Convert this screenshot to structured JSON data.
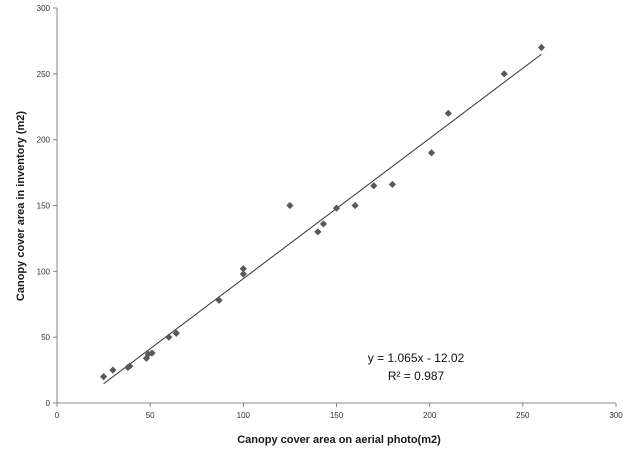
{
  "chart_data": {
    "type": "scatter",
    "title": "",
    "xlabel": "Canopy cover area on aerial photo(m2)",
    "ylabel": "Canopy cover area in inventory (m2)",
    "xlim": [
      0,
      300
    ],
    "ylim": [
      0,
      300
    ],
    "x_ticks": [
      0,
      50,
      100,
      150,
      200,
      250,
      300
    ],
    "y_ticks": [
      0,
      50,
      100,
      150,
      200,
      250,
      300
    ],
    "x_tick_labels": [
      "0",
      "50",
      "100",
      "150",
      "200",
      "250",
      "300"
    ],
    "y_tick_labels": [
      "0",
      "50",
      "100",
      "150",
      "200",
      "250",
      "300"
    ],
    "grid": false,
    "legend": "none",
    "marker_color": "#595959",
    "trendline_color": "#333333",
    "points": [
      {
        "x": 25,
        "y": 20
      },
      {
        "x": 30,
        "y": 25
      },
      {
        "x": 38,
        "y": 27
      },
      {
        "x": 39,
        "y": 28
      },
      {
        "x": 48,
        "y": 34
      },
      {
        "x": 49,
        "y": 37
      },
      {
        "x": 51,
        "y": 38
      },
      {
        "x": 60,
        "y": 50
      },
      {
        "x": 64,
        "y": 53
      },
      {
        "x": 87,
        "y": 78
      },
      {
        "x": 100,
        "y": 98
      },
      {
        "x": 100,
        "y": 102
      },
      {
        "x": 125,
        "y": 150
      },
      {
        "x": 140,
        "y": 130
      },
      {
        "x": 143,
        "y": 136
      },
      {
        "x": 150,
        "y": 148
      },
      {
        "x": 160,
        "y": 150
      },
      {
        "x": 170,
        "y": 165
      },
      {
        "x": 180,
        "y": 166
      },
      {
        "x": 201,
        "y": 190
      },
      {
        "x": 210,
        "y": 220
      },
      {
        "x": 240,
        "y": 250
      },
      {
        "x": 260,
        "y": 270
      }
    ],
    "trendline": {
      "slope": 1.065,
      "intercept": -12.02,
      "x_range": [
        25,
        260
      ],
      "equation": "y = 1.065x - 12.02",
      "r_squared": "R² = 0.987"
    }
  }
}
